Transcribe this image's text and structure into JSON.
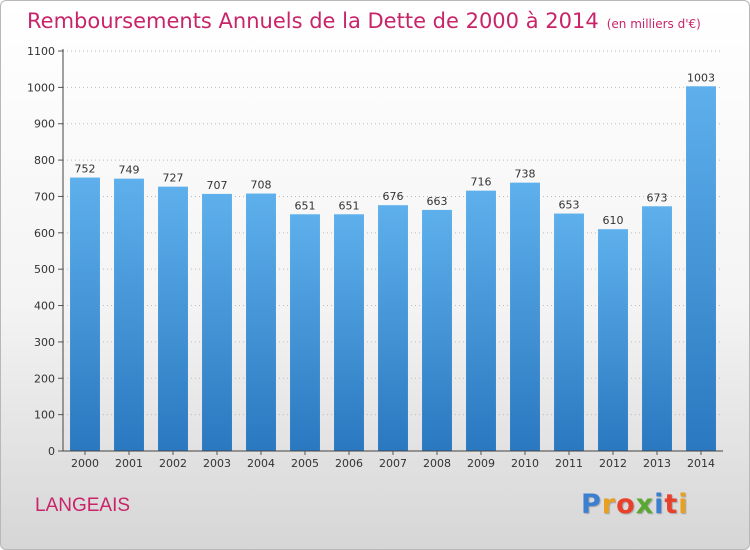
{
  "chart_data": {
    "type": "bar",
    "title": "Remboursements Annuels de la Dette de 2000 à 2014",
    "unit_note": "(en milliers d'€)",
    "categories": [
      "2000",
      "2001",
      "2002",
      "2003",
      "2004",
      "2005",
      "2006",
      "2007",
      "2008",
      "2009",
      "2010",
      "2011",
      "2012",
      "2013",
      "2014"
    ],
    "values": [
      752,
      749,
      727,
      707,
      708,
      651,
      651,
      676,
      663,
      716,
      738,
      653,
      610,
      673,
      1003
    ],
    "ylim": [
      0,
      1100
    ],
    "yticks": [
      0,
      100,
      200,
      300,
      400,
      500,
      600,
      700,
      800,
      900,
      1000,
      1100
    ],
    "grid": "horizontal-dotted",
    "bar_color": "#3d8fd4"
  },
  "footer": {
    "commune": "LANGEAIS",
    "logo_letters": [
      "P",
      "r",
      "o",
      "x",
      "i",
      "t",
      "i"
    ],
    "logo_colors": [
      "#3a7fd0",
      "#e8a020",
      "#e8402a",
      "#5aa832",
      "#3a7fd0",
      "#e8402a",
      "#e8a020"
    ]
  }
}
